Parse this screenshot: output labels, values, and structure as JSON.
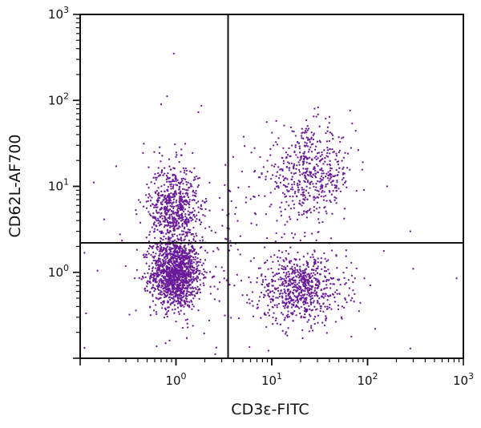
{
  "chart_data": {
    "type": "scatter",
    "title": "",
    "xlabel": "CD3ε-FITC",
    "ylabel": "CD62L-AF700",
    "xscale": "log",
    "yscale": "log",
    "xlim": [
      0.1,
      1000
    ],
    "ylim": [
      0.1,
      1000
    ],
    "x_ticks": [
      {
        "base": "10",
        "exp": "0",
        "value": 1
      },
      {
        "base": "10",
        "exp": "1",
        "value": 10
      },
      {
        "base": "10",
        "exp": "2",
        "value": 100
      },
      {
        "base": "10",
        "exp": "3",
        "value": 1000
      }
    ],
    "y_ticks": [
      {
        "base": "10",
        "exp": "0",
        "value": 1
      },
      {
        "base": "10",
        "exp": "1",
        "value": 10
      },
      {
        "base": "10",
        "exp": "2",
        "value": 100
      },
      {
        "base": "10",
        "exp": "3",
        "value": 1000
      }
    ],
    "quadrant_gate": {
      "x": 3.5,
      "y": 2.2
    },
    "point_color": "#6a1b9a",
    "populations": [
      {
        "x_center": 1.0,
        "y_center": 0.95,
        "x_spread_log": 0.13,
        "y_spread_log": 0.2,
        "count": 1300
      },
      {
        "x_center": 0.95,
        "y_center": 5.5,
        "x_spread_log": 0.13,
        "y_spread_log": 0.26,
        "count": 650
      },
      {
        "x_center": 20,
        "y_center": 0.65,
        "x_spread_log": 0.24,
        "y_spread_log": 0.2,
        "count": 720
      },
      {
        "x_center": 25,
        "y_center": 14,
        "x_spread_log": 0.23,
        "y_spread_log": 0.26,
        "count": 520
      },
      {
        "x_center": 2.5,
        "y_center": 2.5,
        "x_spread_log": 0.55,
        "y_spread_log": 0.55,
        "count": 220
      }
    ],
    "outliers": [
      {
        "x": 0.95,
        "y": 350
      },
      {
        "x": 0.7,
        "y": 90
      },
      {
        "x": 28,
        "y": 80
      },
      {
        "x": 160,
        "y": 10
      },
      {
        "x": 280,
        "y": 3
      },
      {
        "x": 300,
        "y": 1.1
      },
      {
        "x": 850,
        "y": 0.85
      },
      {
        "x": 120,
        "y": 0.22
      },
      {
        "x": 280,
        "y": 0.13
      }
    ]
  }
}
